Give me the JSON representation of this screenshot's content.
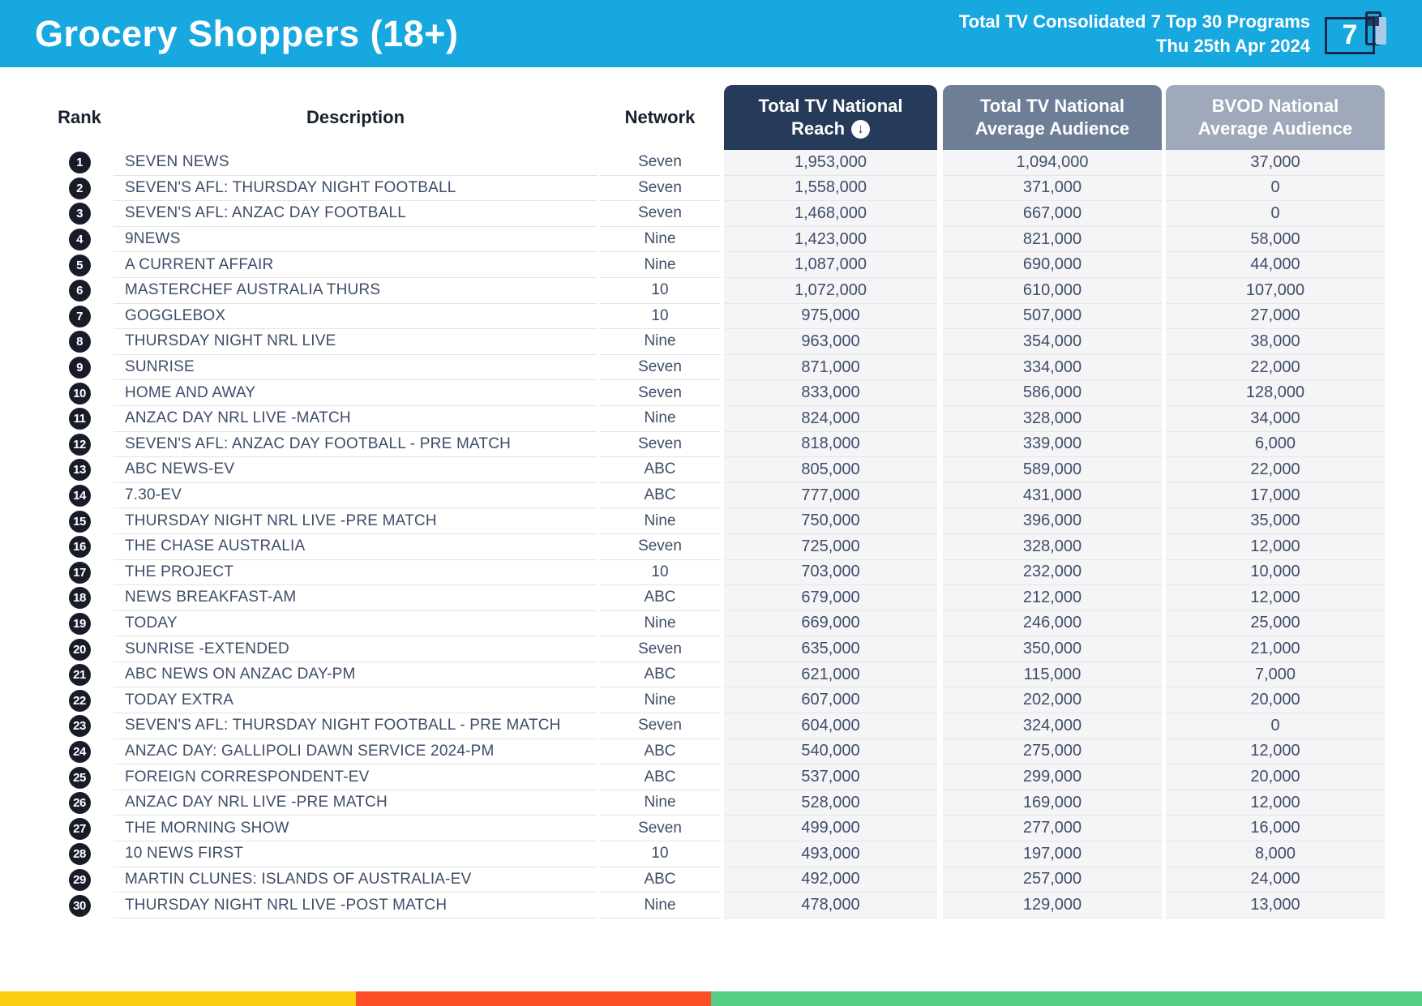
{
  "header": {
    "title": "Grocery Shoppers (18+)",
    "report_line1": "Total TV Consolidated 7 Top 30 Programs",
    "report_line2": "Thu 25th Apr 2024",
    "logo_text": "7"
  },
  "columns": {
    "rank": "Rank",
    "description": "Description",
    "network": "Network",
    "reach_line1": "Total TV National",
    "reach_line2": "Reach",
    "avg_line1": "Total TV National",
    "avg_line2": "Average Audience",
    "bvod_line1": "BVOD National",
    "bvod_line2": "Average Audience",
    "sort_glyph": "↓"
  },
  "chart_data": {
    "type": "table",
    "title": "Grocery Shoppers (18+) — Total TV Consolidated 7 Top 30 Programs — Thu 25th Apr 2024",
    "columns": [
      "Rank",
      "Description",
      "Network",
      "Total TV National Reach",
      "Total TV National Average Audience",
      "BVOD National Average Audience"
    ],
    "sorted_by": "Total TV National Reach (descending)",
    "rows": [
      [
        "1",
        "SEVEN NEWS",
        "Seven",
        "1,953,000",
        "1,094,000",
        "37,000"
      ],
      [
        "2",
        "SEVEN'S AFL: THURSDAY NIGHT FOOTBALL",
        "Seven",
        "1,558,000",
        "371,000",
        "0"
      ],
      [
        "3",
        "SEVEN'S AFL: ANZAC DAY FOOTBALL",
        "Seven",
        "1,468,000",
        "667,000",
        "0"
      ],
      [
        "4",
        "9NEWS",
        "Nine",
        "1,423,000",
        "821,000",
        "58,000"
      ],
      [
        "5",
        "A CURRENT AFFAIR",
        "Nine",
        "1,087,000",
        "690,000",
        "44,000"
      ],
      [
        "6",
        "MASTERCHEF AUSTRALIA THURS",
        "10",
        "1,072,000",
        "610,000",
        "107,000"
      ],
      [
        "7",
        "GOGGLEBOX",
        "10",
        "975,000",
        "507,000",
        "27,000"
      ],
      [
        "8",
        "THURSDAY NIGHT NRL LIVE",
        "Nine",
        "963,000",
        "354,000",
        "38,000"
      ],
      [
        "9",
        "SUNRISE",
        "Seven",
        "871,000",
        "334,000",
        "22,000"
      ],
      [
        "10",
        "HOME AND AWAY",
        "Seven",
        "833,000",
        "586,000",
        "128,000"
      ],
      [
        "11",
        "ANZAC DAY NRL LIVE -MATCH",
        "Nine",
        "824,000",
        "328,000",
        "34,000"
      ],
      [
        "12",
        "SEVEN'S AFL: ANZAC DAY FOOTBALL - PRE MATCH",
        "Seven",
        "818,000",
        "339,000",
        "6,000"
      ],
      [
        "13",
        "ABC NEWS-EV",
        "ABC",
        "805,000",
        "589,000",
        "22,000"
      ],
      [
        "14",
        "7.30-EV",
        "ABC",
        "777,000",
        "431,000",
        "17,000"
      ],
      [
        "15",
        "THURSDAY NIGHT NRL LIVE -PRE MATCH",
        "Nine",
        "750,000",
        "396,000",
        "35,000"
      ],
      [
        "16",
        "THE CHASE AUSTRALIA",
        "Seven",
        "725,000",
        "328,000",
        "12,000"
      ],
      [
        "17",
        "THE PROJECT",
        "10",
        "703,000",
        "232,000",
        "10,000"
      ],
      [
        "18",
        "NEWS BREAKFAST-AM",
        "ABC",
        "679,000",
        "212,000",
        "12,000"
      ],
      [
        "19",
        "TODAY",
        "Nine",
        "669,000",
        "246,000",
        "25,000"
      ],
      [
        "20",
        "SUNRISE -EXTENDED",
        "Seven",
        "635,000",
        "350,000",
        "21,000"
      ],
      [
        "21",
        "ABC NEWS ON ANZAC DAY-PM",
        "ABC",
        "621,000",
        "115,000",
        "7,000"
      ],
      [
        "22",
        "TODAY EXTRA",
        "Nine",
        "607,000",
        "202,000",
        "20,000"
      ],
      [
        "23",
        "SEVEN'S AFL: THURSDAY NIGHT FOOTBALL - PRE MATCH",
        "Seven",
        "604,000",
        "324,000",
        "0"
      ],
      [
        "24",
        "ANZAC DAY: GALLIPOLI DAWN SERVICE 2024-PM",
        "ABC",
        "540,000",
        "275,000",
        "12,000"
      ],
      [
        "25",
        "FOREIGN CORRESPONDENT-EV",
        "ABC",
        "537,000",
        "299,000",
        "20,000"
      ],
      [
        "26",
        "ANZAC DAY NRL LIVE -PRE MATCH",
        "Nine",
        "528,000",
        "169,000",
        "12,000"
      ],
      [
        "27",
        "THE MORNING SHOW",
        "Seven",
        "499,000",
        "277,000",
        "16,000"
      ],
      [
        "28",
        "10 NEWS FIRST",
        "10",
        "493,000",
        "197,000",
        "8,000"
      ],
      [
        "29",
        "MARTIN CLUNES: ISLANDS OF AUSTRALIA-EV",
        "ABC",
        "492,000",
        "257,000",
        "24,000"
      ],
      [
        "30",
        "THURSDAY NIGHT NRL LIVE -POST MATCH",
        "Nine",
        "478,000",
        "129,000",
        "13,000"
      ]
    ]
  },
  "colors": {
    "topbar": "#18a8e0",
    "reach_header": "#263a59",
    "avg_header": "#6e7e97",
    "bvod_header": "#a0a9b9",
    "stripes": [
      "#fbcd0e",
      "#fb4e27",
      "#55cf86"
    ]
  }
}
